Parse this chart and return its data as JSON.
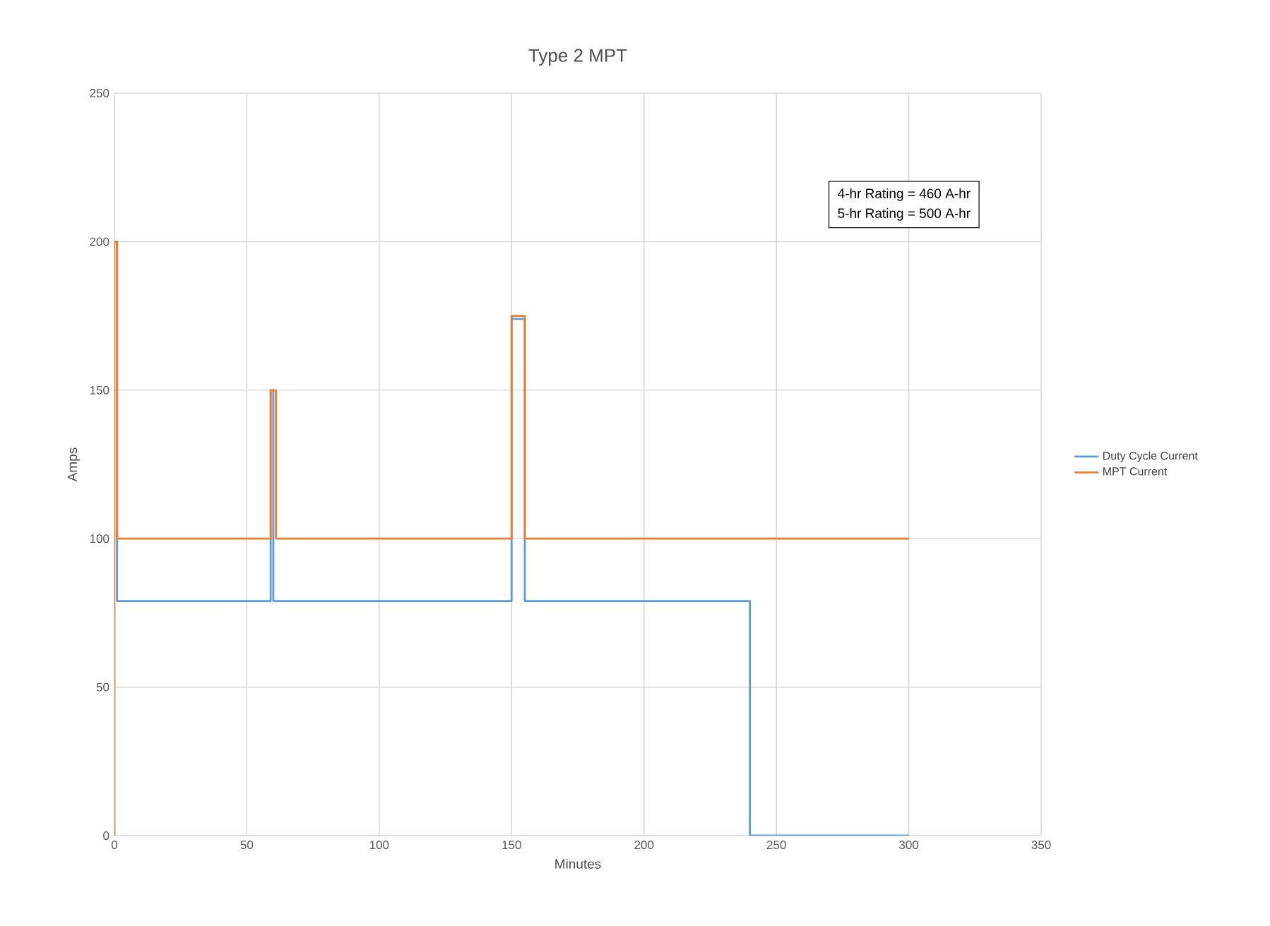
{
  "chart_data": {
    "type": "line",
    "title": "Type 2 MPT",
    "xlabel": "Minutes",
    "ylabel": "Amps",
    "annotations": [
      "4-hr Rating = 460 A-hr",
      "5-hr Rating = 500 A-hr"
    ],
    "series": [
      {
        "name": "Duty Cycle Current",
        "color": "#5b9bd5",
        "x": [
          0,
          1,
          1,
          59,
          59,
          60,
          60,
          150,
          150,
          155,
          155,
          240,
          240,
          300
        ],
        "values": [
          200,
          200,
          79,
          79,
          150,
          150,
          79,
          79,
          174,
          174,
          79,
          79,
          0,
          0
        ]
      },
      {
        "name": "MPT Current",
        "color": "#ed7d31",
        "x": [
          0,
          0,
          1,
          1,
          59,
          59,
          61,
          61,
          150,
          150,
          155,
          155,
          300
        ],
        "values": [
          0,
          200,
          200,
          100,
          100,
          150,
          150,
          100,
          100,
          175,
          175,
          100,
          100
        ]
      }
    ],
    "xlim": [
      0,
      350
    ],
    "ylim": [
      0,
      250
    ],
    "xticks": [
      0,
      50,
      100,
      150,
      200,
      250,
      300,
      350
    ],
    "yticks": [
      0,
      50,
      100,
      150,
      200,
      250
    ],
    "grid": true,
    "legend": "right",
    "marker": "none",
    "line_style": "solid"
  }
}
